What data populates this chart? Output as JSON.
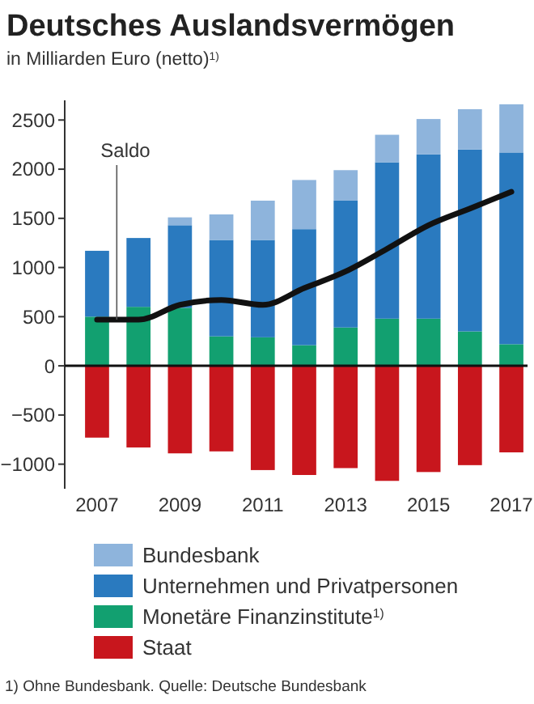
{
  "chart_data": {
    "type": "bar",
    "stacked": true,
    "title": "Deutsches Auslandsvermögen",
    "subtitle": "in Milliarden Euro (netto)$^{1)}$",
    "categories": [
      "2007",
      null,
      "2009",
      null,
      "2011",
      null,
      "2013",
      null,
      "2015",
      null,
      "2017"
    ],
    "series": [
      {
        "name": "Staat",
        "color": "#c8161d",
        "values": [
          -730,
          -830,
          -890,
          -870,
          -1060,
          -1110,
          -1040,
          -1170,
          -1080,
          -1010,
          -880
        ]
      },
      {
        "name": "Monetäre Finanzinstitute$^{1)}$",
        "color": "#12a070",
        "values": [
          500,
          600,
          590,
          300,
          290,
          210,
          390,
          480,
          480,
          350,
          220
        ]
      },
      {
        "name": "Unternehmen und Privatpersonen",
        "color": "#2a7abf",
        "values": [
          670,
          700,
          840,
          980,
          990,
          1180,
          1290,
          1590,
          1670,
          1850,
          1950
        ]
      },
      {
        "name": "Bundesbank",
        "color": "#8eb4dc",
        "values": [
          0,
          0,
          80,
          260,
          400,
          500,
          310,
          280,
          360,
          410,
          490
        ]
      },
      {
        "name": "Saldo",
        "type": "line",
        "color": "#111111",
        "values": [
          470,
          470,
          620,
          670,
          620,
          790,
          960,
          1190,
          1430,
          1600,
          1770
        ]
      }
    ],
    "ylim": [
      -1250,
      2700
    ],
    "yticks": [
      {
        "value": -1000,
        "label": "−1000"
      },
      {
        "value": -500,
        "label": "−500"
      },
      0,
      500,
      1000,
      1500,
      2000,
      2500
    ],
    "legend": "bottom",
    "annotations": [
      "1) Ohne Bundesbank.  Quelle: Deutsche Bundesbank"
    ]
  }
}
